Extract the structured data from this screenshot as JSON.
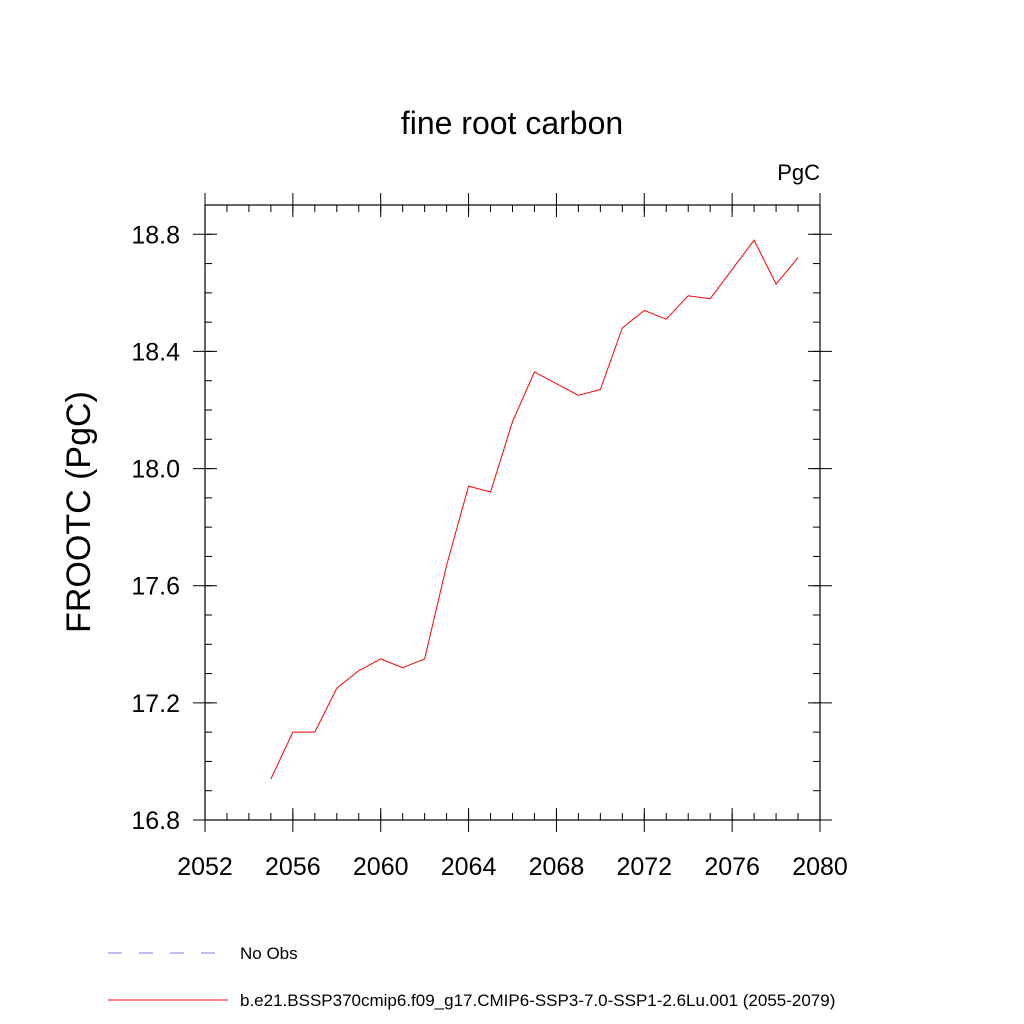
{
  "chart_data": {
    "type": "line",
    "title": "fine root carbon",
    "units_label": "PgC",
    "ylabel": "FROOTC  (PgC)",
    "xlabel": "",
    "xlim": [
      2052,
      2080
    ],
    "ylim": [
      16.8,
      18.9
    ],
    "x_ticks": [
      2052,
      2056,
      2060,
      2064,
      2068,
      2072,
      2076,
      2080
    ],
    "y_ticks": [
      16.8,
      17.2,
      17.6,
      18.0,
      18.4,
      18.8
    ],
    "x_tick_labels": [
      "2052",
      "2056",
      "2060",
      "2064",
      "2068",
      "2072",
      "2076",
      "2080"
    ],
    "y_tick_labels": [
      "16.8",
      "17.2",
      "17.6",
      "18.0",
      "18.4",
      "18.8"
    ],
    "x_minor_step": 1,
    "y_minor_step": 0.1,
    "grid": false,
    "legend_position": "bottom",
    "x": [
      2055,
      2056,
      2057,
      2058,
      2059,
      2060,
      2061,
      2062,
      2063,
      2064,
      2065,
      2066,
      2067,
      2068,
      2069,
      2070,
      2071,
      2072,
      2073,
      2074,
      2075,
      2076,
      2077,
      2078,
      2079
    ],
    "series": [
      {
        "name": "b.e21.BSSP370cmip6.f09_g17.CMIP6-SSP3-7.0-SSP1-2.6Lu.001 (2055-2079)",
        "color": "#ff0000",
        "style": "solid",
        "values": [
          16.94,
          17.1,
          17.1,
          17.25,
          17.31,
          17.35,
          17.32,
          17.35,
          17.67,
          17.94,
          17.92,
          18.16,
          18.33,
          18.29,
          18.25,
          18.27,
          18.48,
          18.54,
          18.51,
          18.59,
          18.58,
          18.68,
          18.78,
          18.63,
          18.72
        ]
      }
    ],
    "legend": [
      {
        "label": "No Obs",
        "color": "#7f7fcf",
        "style": "dashed"
      },
      {
        "label": "b.e21.BSSP370cmip6.f09_g17.CMIP6-SSP3-7.0-SSP1-2.6Lu.001 (2055-2079)",
        "color": "#ff0000",
        "style": "solid"
      }
    ]
  }
}
